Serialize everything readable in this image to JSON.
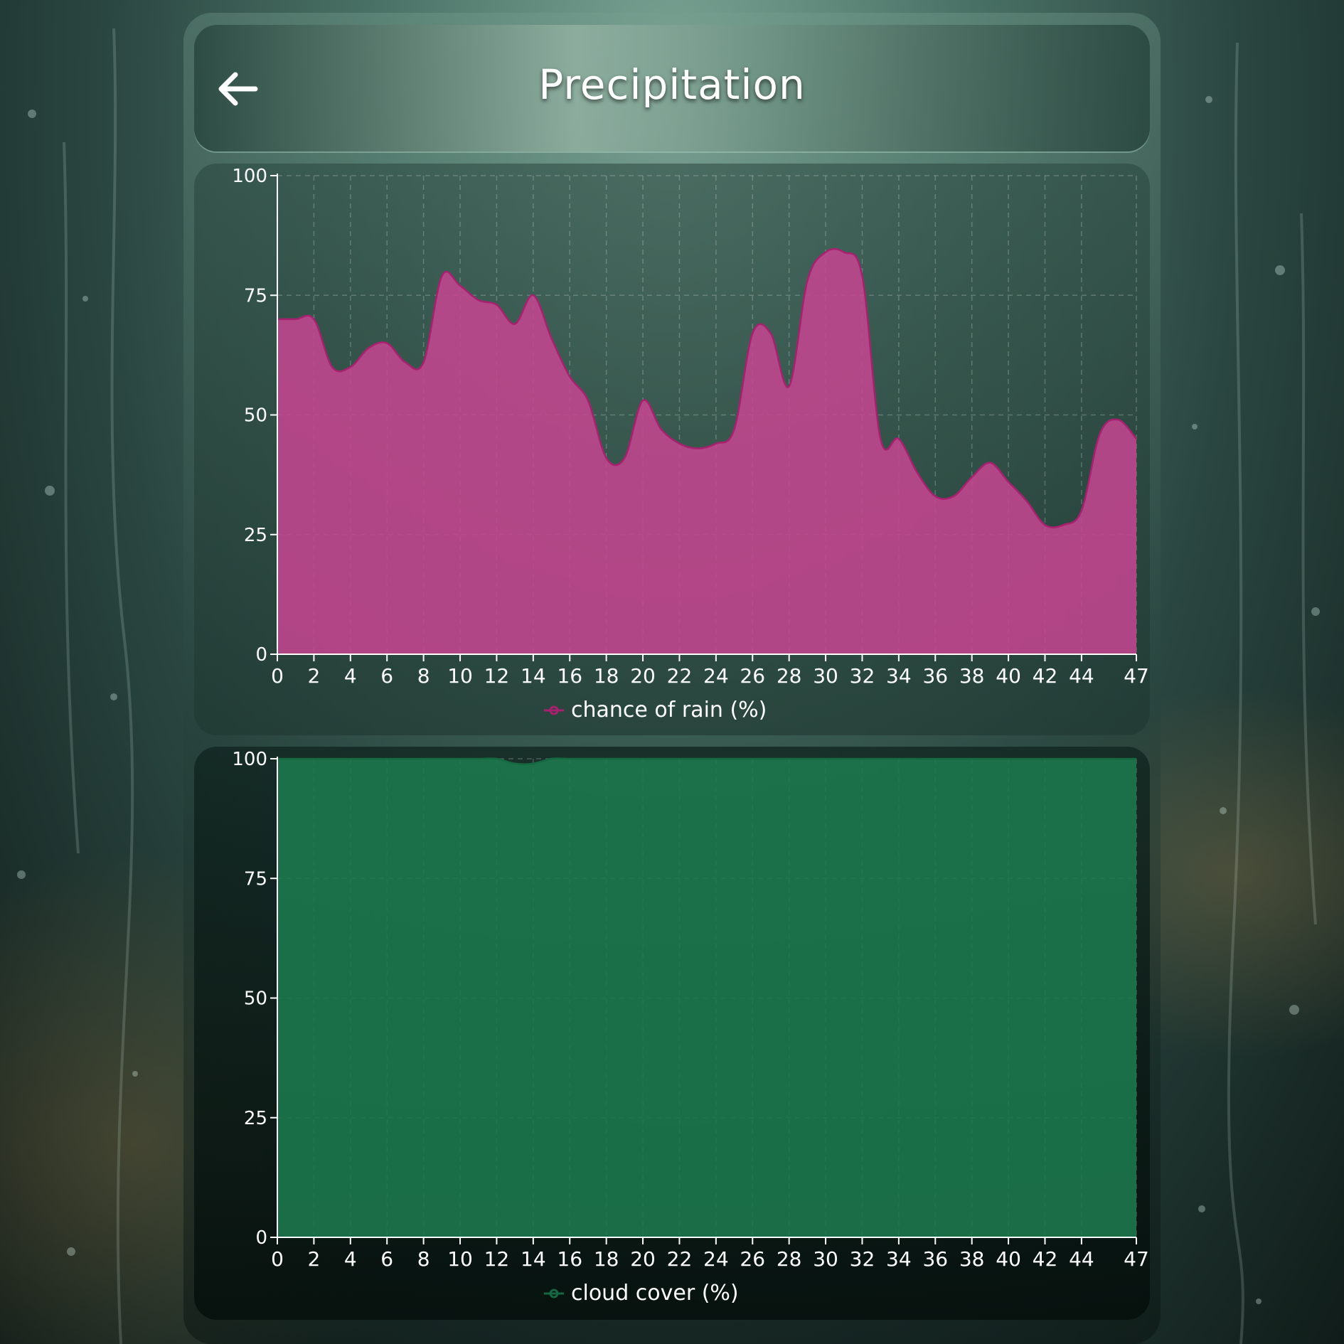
{
  "header": {
    "title": "Precipitation",
    "back_icon": "arrow-left-icon"
  },
  "colors": {
    "rain": "#c4468f",
    "rain_line": "#a8206f",
    "cloud": "#1c7a4e",
    "cloud_line": "#15683f"
  },
  "chart_data": [
    {
      "type": "area",
      "legend": "chance of rain (%)",
      "legend_position": "bottom-center",
      "grid": true,
      "ylim": [
        0,
        100
      ],
      "yticks": [
        "0",
        "25",
        "50",
        "75",
        "100"
      ],
      "xticks": [
        "0",
        "2",
        "4",
        "6",
        "8",
        "10",
        "12",
        "14",
        "16",
        "18",
        "20",
        "22",
        "24",
        "26",
        "28",
        "30",
        "32",
        "34",
        "36",
        "38",
        "40",
        "42",
        "44",
        "47"
      ],
      "x": [
        0,
        1,
        2,
        3,
        4,
        5,
        6,
        7,
        8,
        9,
        10,
        11,
        12,
        13,
        14,
        15,
        16,
        17,
        18,
        19,
        20,
        21,
        22,
        23,
        24,
        25,
        26,
        27,
        28,
        29,
        30,
        31,
        32,
        33,
        34,
        35,
        36,
        37,
        38,
        39,
        40,
        41,
        42,
        43,
        44,
        45,
        46,
        47
      ],
      "values": [
        70,
        70,
        70,
        60,
        60,
        64,
        65,
        61,
        61,
        79,
        77,
        74,
        73,
        69,
        75,
        66,
        58,
        53,
        41,
        41,
        53,
        47,
        44,
        43,
        44,
        47,
        67,
        67,
        56,
        78,
        84,
        84,
        79,
        45,
        45,
        38,
        33,
        33,
        37,
        40,
        36,
        32,
        27,
        27,
        30,
        46,
        49,
        45
      ]
    },
    {
      "type": "area",
      "legend": "cloud cover (%)",
      "legend_position": "bottom-center",
      "grid": true,
      "ylim": [
        0,
        100
      ],
      "yticks": [
        "0",
        "25",
        "50",
        "75",
        "100"
      ],
      "xticks": [
        "0",
        "2",
        "4",
        "6",
        "8",
        "10",
        "12",
        "14",
        "16",
        "18",
        "20",
        "22",
        "24",
        "26",
        "28",
        "30",
        "32",
        "34",
        "36",
        "38",
        "40",
        "42",
        "44",
        "47"
      ],
      "x": [
        0,
        1,
        2,
        3,
        4,
        5,
        6,
        7,
        8,
        9,
        10,
        11,
        12,
        13,
        14,
        15,
        16,
        17,
        18,
        19,
        20,
        21,
        22,
        23,
        24,
        25,
        26,
        27,
        28,
        29,
        30,
        31,
        32,
        33,
        34,
        35,
        36,
        37,
        38,
        39,
        40,
        41,
        42,
        43,
        44,
        45,
        46,
        47
      ],
      "values": [
        100,
        100,
        100,
        100,
        100,
        100,
        100,
        100,
        100,
        100,
        100,
        100,
        100,
        99,
        99,
        100,
        100,
        100,
        100,
        100,
        100,
        100,
        100,
        100,
        100,
        100,
        100,
        100,
        100,
        100,
        100,
        100,
        100,
        100,
        100,
        100,
        100,
        100,
        100,
        100,
        100,
        100,
        100,
        100,
        100,
        100,
        100,
        100
      ]
    }
  ]
}
